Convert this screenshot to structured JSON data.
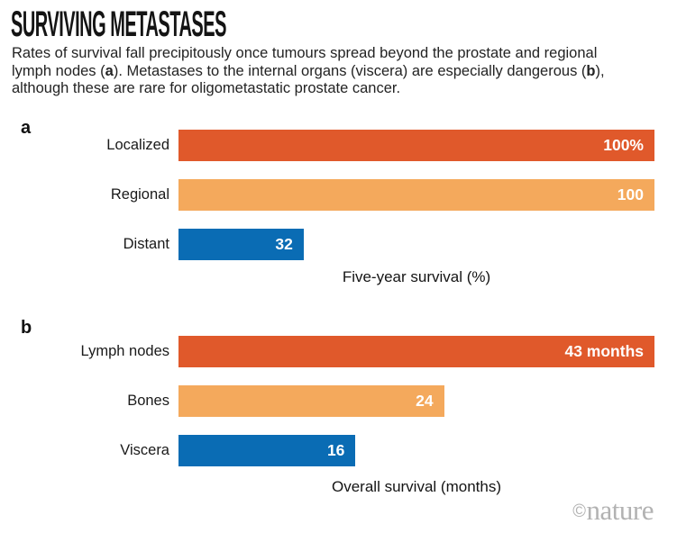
{
  "header": {
    "title": "SURVIVING METASTASES",
    "intro": {
      "part1": "Rates of survival fall precipitously once tumours spread beyond the prostate and regional lymph nodes (",
      "bold1": "a",
      "part2": "). Metastases to the internal organs (viscera) are especially dangerous (",
      "bold2": "b",
      "part3": "), although these are rare for oligometastatic prostate cancer."
    }
  },
  "colors": {
    "bar_dark_orange": "#E0592B",
    "bar_light_orange": "#F4A95C",
    "bar_blue": "#0A6CB4",
    "body_text": "#232323",
    "bar_value_text": "#FFFFFF",
    "watermark_gray": "#B2B2B2"
  },
  "chart_data": [
    {
      "id": "a",
      "panel_label": "a",
      "type": "bar",
      "orientation": "horizontal",
      "categories": [
        "Localized",
        "Regional",
        "Distant"
      ],
      "values": [
        100,
        100,
        32
      ],
      "value_labels": [
        "100%",
        "100",
        "32"
      ],
      "bar_width_pct": [
        100,
        100,
        26.3
      ],
      "bar_colors": [
        "#E0592B",
        "#F4A95C",
        "#0A6CB4"
      ],
      "xlabel": "Five-year survival (%)",
      "xlim": [
        0,
        100
      ],
      "grid": false,
      "legend": "none",
      "value_label_position": "inside-right"
    },
    {
      "id": "b",
      "panel_label": "b",
      "type": "bar",
      "orientation": "horizontal",
      "categories": [
        "Lymph nodes",
        "Bones",
        "Viscera"
      ],
      "values": [
        43,
        24,
        16
      ],
      "value_labels": [
        "43 months",
        "24",
        "16"
      ],
      "bar_width_pct": [
        100,
        55.8,
        37.2
      ],
      "bar_colors": [
        "#E0592B",
        "#F4A95C",
        "#0A6CB4"
      ],
      "xlabel": "Overall survival (months)",
      "xlim": [
        0,
        43
      ],
      "grid": false,
      "legend": "none",
      "value_label_position": "inside-right"
    }
  ],
  "footer": {
    "watermark_symbol": "©",
    "watermark_name": "nature"
  }
}
